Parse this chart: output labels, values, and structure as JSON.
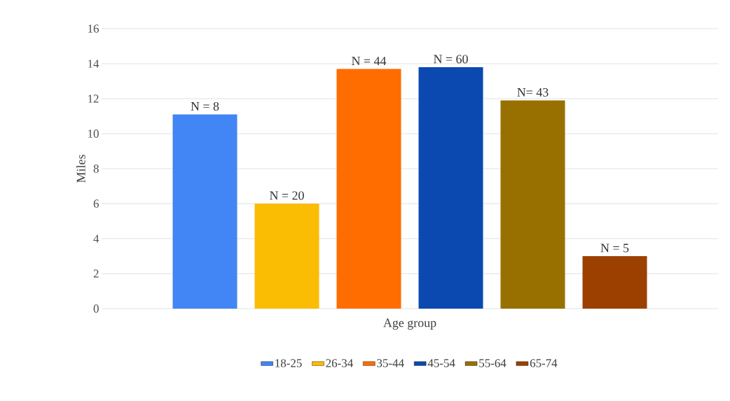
{
  "chart_data": {
    "type": "bar",
    "xlabel": "Age group",
    "ylabel": "Miles",
    "categories": [
      null
    ],
    "series": [
      {
        "name": "18-25",
        "color": "#4285f4",
        "values": [
          11.1
        ]
      },
      {
        "name": "26-34",
        "color": "#fbbc04",
        "values": [
          6.0
        ]
      },
      {
        "name": "35-44",
        "color": "#ff6d01",
        "values": [
          13.7
        ]
      },
      {
        "name": "45-54",
        "color": "#0b49b0",
        "values": [
          13.8
        ]
      },
      {
        "name": "55-64",
        "color": "#977000",
        "values": [
          11.9
        ]
      },
      {
        "name": "65-74",
        "color": "#9c4000",
        "values": [
          3.0
        ]
      }
    ],
    "annotations": [
      {
        "text": "N = 8",
        "y": 11.1
      },
      {
        "text": "N = 20",
        "y": 6.0
      },
      {
        "text": "N = 44",
        "y": 13.7
      },
      {
        "text": "N = 60",
        "y": 13.8
      },
      {
        "text": "N= 43",
        "y": 11.9
      },
      {
        "text": "N = 5",
        "y": 3.0
      }
    ],
    "ylim": [
      0,
      16
    ],
    "yticks": [
      0,
      2,
      4,
      6,
      8,
      10,
      12,
      14,
      16
    ],
    "grid": "y",
    "legend": "bottom"
  }
}
